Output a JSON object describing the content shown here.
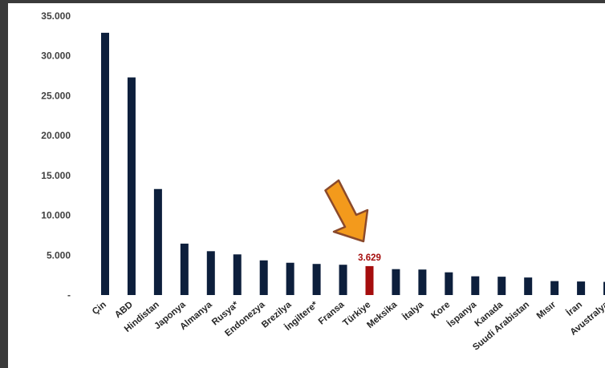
{
  "colors": {
    "bar": "#0d1f3c",
    "highlight": "#a50d0d",
    "arrow_fill": "#f39a1c",
    "arrow_stroke": "#8b4a2b"
  },
  "arrow_icon": "down-left-arrow",
  "chart_data": {
    "type": "bar",
    "title": "",
    "xlabel": "",
    "ylabel": "",
    "ylim": [
      0,
      35000
    ],
    "yticks": [
      0,
      5000,
      10000,
      15000,
      20000,
      25000,
      30000,
      35000
    ],
    "ytick_labels": [
      "-",
      "5.000",
      "10.000",
      "15.000",
      "20.000",
      "25.000",
      "30.000",
      "35.000"
    ],
    "grid": false,
    "legend": "none",
    "categories": [
      "Çin",
      "ABD",
      "Hindistan",
      "Japonya",
      "Almanya",
      "Rusya*",
      "Endonezya",
      "Brezilya",
      "İngiltere*",
      "Fransa",
      "Türkiye",
      "Meksika",
      "İtalya",
      "Kore",
      "İspanya",
      "Kanada",
      "Suudi Arabistan",
      "Mısır",
      "İran",
      "Avustralya"
    ],
    "values": [
      32900,
      27300,
      13300,
      6450,
      5500,
      5100,
      4350,
      4050,
      3900,
      3800,
      3629,
      3250,
      3200,
      2850,
      2350,
      2300,
      2200,
      1750,
      1700,
      1650
    ],
    "highlight_index": 10,
    "annotations": [
      {
        "category": "Türkiye",
        "text": "3.629"
      }
    ]
  }
}
